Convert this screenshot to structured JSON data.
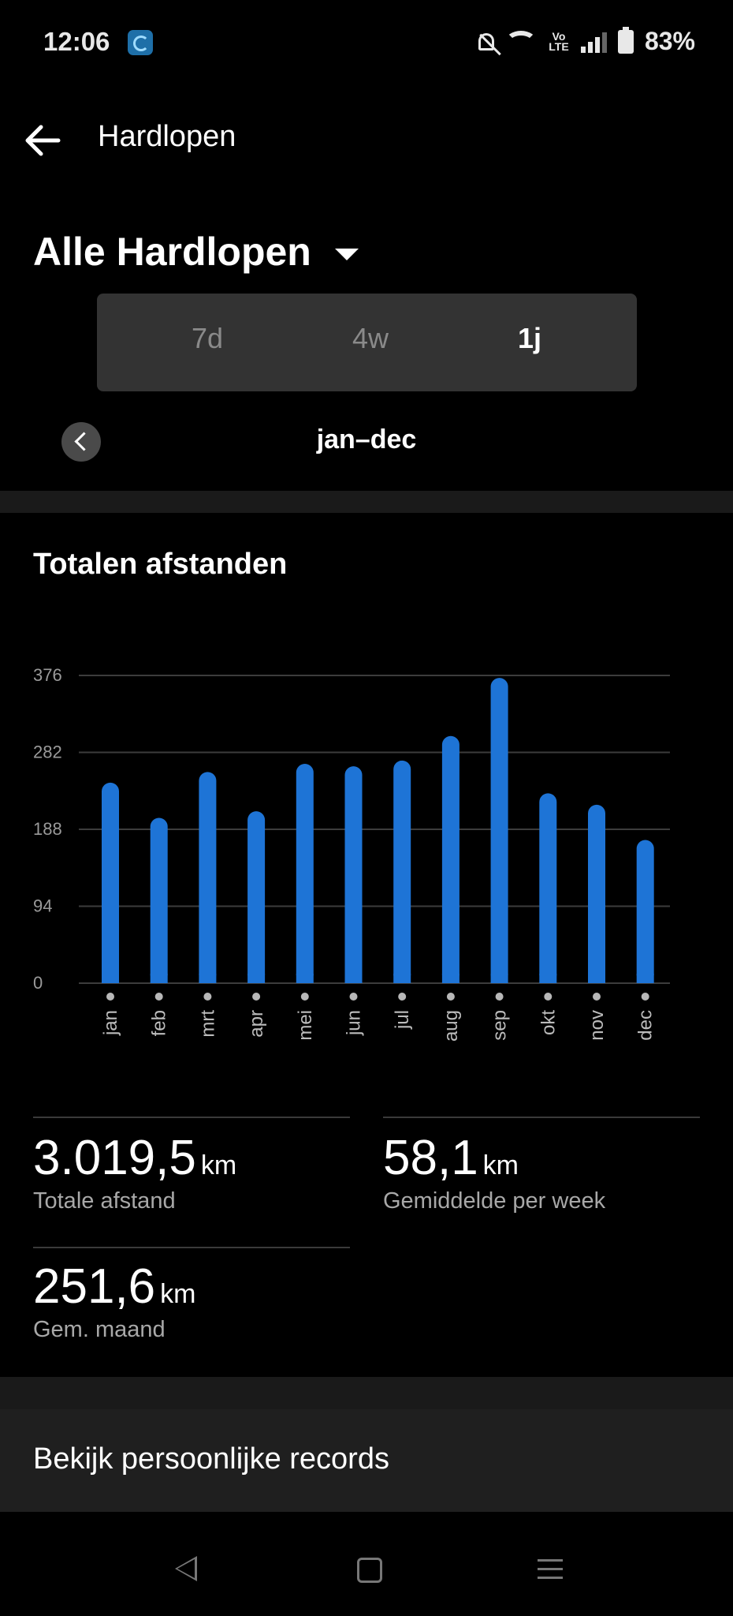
{
  "status_bar": {
    "time": "12:06",
    "volte": "Vo\nLTE",
    "battery": "83%",
    "icons": [
      "app-icon",
      "bell-off-icon",
      "wifi-icon",
      "volte-icon",
      "signal-icon",
      "battery-icon"
    ]
  },
  "header": {
    "title": "Hardlopen",
    "back_icon": "arrow-left-icon"
  },
  "activity_selector": {
    "label": "Alle Hardlopen",
    "icon": "caret-down-icon"
  },
  "period_tabs": [
    {
      "label": "7d",
      "active": false
    },
    {
      "label": "4w",
      "active": false
    },
    {
      "label": "1j",
      "active": true
    }
  ],
  "range": {
    "label": "jan–dec",
    "prev_icon": "chevron-left-icon"
  },
  "chart_title": "Totalen afstanden",
  "chart_data": {
    "type": "bar",
    "title": "Totalen afstanden",
    "categories": [
      "jan",
      "feb",
      "mrt",
      "apr",
      "mei",
      "jun",
      "jul",
      "aug",
      "sep",
      "okt",
      "nov",
      "dec"
    ],
    "values": [
      245,
      202,
      258,
      210,
      268,
      265,
      272,
      302,
      373,
      232,
      218,
      175
    ],
    "yticks": [
      "0",
      "94",
      "188",
      "282",
      "376"
    ],
    "ylim": [
      0,
      376
    ],
    "grid": true,
    "bar_color": "#1e74d6"
  },
  "stats": [
    {
      "value": "3.019,5",
      "unit": "km",
      "label": "Totale afstand"
    },
    {
      "value": "58,1",
      "unit": "km",
      "label": "Gemiddelde per week"
    },
    {
      "value": "251,6",
      "unit": "km",
      "label": "Gem. maand"
    }
  ],
  "records_link": "Bekijk persoonlijke records",
  "nav_bar": {
    "icons": [
      "back-triangle-icon",
      "home-square-icon",
      "recents-menu-icon"
    ]
  }
}
